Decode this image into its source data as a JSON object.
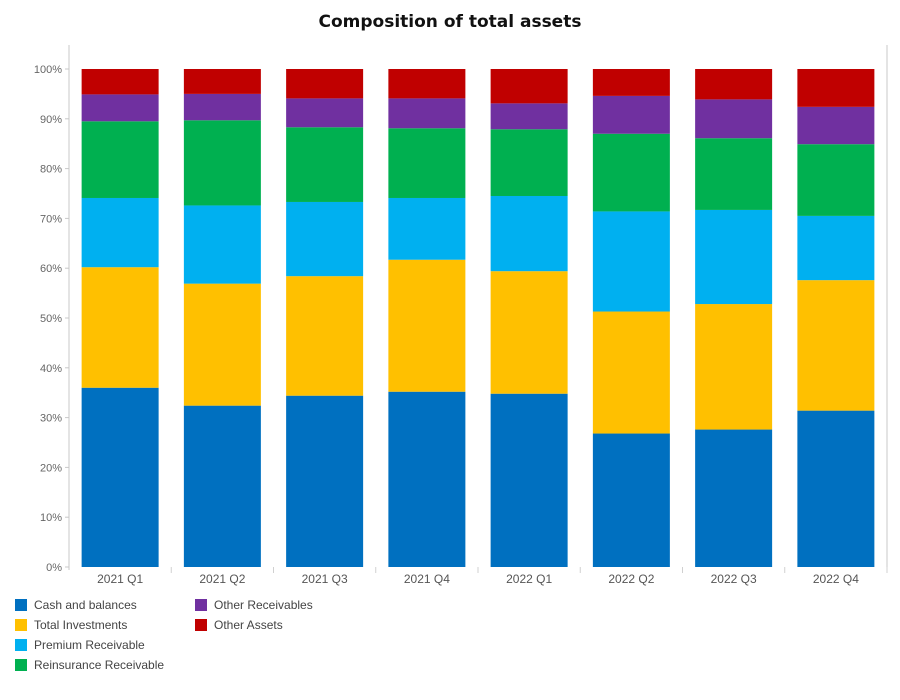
{
  "chart_data": {
    "type": "bar",
    "stacked": true,
    "normalized_percent": true,
    "title": "Composition of total assets",
    "xlabel": "",
    "ylabel": "",
    "ylim": [
      0,
      100
    ],
    "yticks": [
      "0%",
      "10%",
      "20%",
      "30%",
      "40%",
      "50%",
      "60%",
      "70%",
      "80%",
      "90%",
      "100%"
    ],
    "categories": [
      "2021 Q1",
      "2021 Q2",
      "2021 Q3",
      "2021 Q4",
      "2022 Q1",
      "2022 Q2",
      "2022 Q3",
      "2022 Q4"
    ],
    "series": [
      {
        "name": "Cash and balances",
        "color": "#0070c0",
        "values": [
          36.0,
          32.4,
          34.4,
          35.2,
          34.8,
          26.8,
          27.6,
          31.4
        ]
      },
      {
        "name": "Total Investments",
        "color": "#ffc000",
        "values": [
          24.2,
          24.5,
          24.0,
          26.5,
          24.6,
          24.5,
          25.2,
          26.2
        ]
      },
      {
        "name": "Premium Receivable",
        "color": "#00b0f0",
        "values": [
          13.9,
          15.7,
          14.9,
          12.4,
          15.1,
          20.1,
          18.9,
          12.9
        ]
      },
      {
        "name": "Reinsurance Receivable",
        "color": "#00b050",
        "values": [
          15.4,
          17.1,
          15.0,
          14.0,
          13.4,
          15.6,
          14.4,
          14.4
        ]
      },
      {
        "name": "Other Receivables",
        "color": "#7030a0",
        "values": [
          5.4,
          5.3,
          5.8,
          6.0,
          5.2,
          7.6,
          7.8,
          7.5
        ]
      },
      {
        "name": "Other Assets",
        "color": "#c00000",
        "values": [
          5.1,
          5.0,
          5.9,
          5.9,
          6.9,
          5.4,
          6.1,
          7.6
        ]
      }
    ],
    "grid": false,
    "legend_position": "bottom-left"
  }
}
